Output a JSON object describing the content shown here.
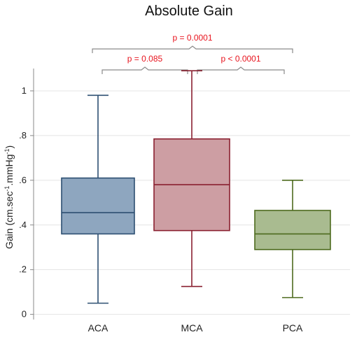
{
  "chart_data": {
    "type": "box",
    "title": "Absolute Gain",
    "ylabel": {
      "base": "Gain (cm.sec",
      "sup1": "-1",
      "mid": ".mmHg",
      "sup2": "-1",
      "end": ")"
    },
    "ylim": [
      -0.02,
      1.1
    ],
    "yticks": [
      {
        "value": 0,
        "label": "0"
      },
      {
        "value": 0.2,
        "label": ".2"
      },
      {
        "value": 0.4,
        "label": ".4"
      },
      {
        "value": 0.6,
        "label": ".6"
      },
      {
        "value": 0.8,
        "label": ".8"
      },
      {
        "value": 1.0,
        "label": "1"
      }
    ],
    "grid": true,
    "categories": [
      "ACA",
      "MCA",
      "PCA"
    ],
    "boxes": [
      {
        "name": "ACA",
        "min": 0.05,
        "q1": 0.36,
        "median": 0.455,
        "q3": 0.61,
        "max": 0.98,
        "fill": "#8ea6bf",
        "stroke": "#2d4f72"
      },
      {
        "name": "MCA",
        "min": 0.125,
        "q1": 0.375,
        "median": 0.58,
        "q3": 0.785,
        "max": 1.09,
        "fill": "#cd9ea3",
        "stroke": "#8a2030"
      },
      {
        "name": "PCA",
        "min": 0.075,
        "q1": 0.29,
        "median": 0.36,
        "q3": 0.465,
        "max": 0.6,
        "fill": "#a9bb90",
        "stroke": "#4d6a1e"
      }
    ],
    "comparisons": [
      {
        "from": "ACA",
        "to": "PCA",
        "label": "p = 0.0001",
        "level": 2
      },
      {
        "from": "ACA",
        "to": "MCA",
        "label": "p = 0.085",
        "level": 1
      },
      {
        "from": "MCA",
        "to": "PCA",
        "label": "p < 0.0001",
        "level": 1
      }
    ],
    "colors": {
      "significance": "#e8141e",
      "grid": "#e4e4e4",
      "axis": "#888888",
      "bracket": "#8a8a8a"
    }
  }
}
